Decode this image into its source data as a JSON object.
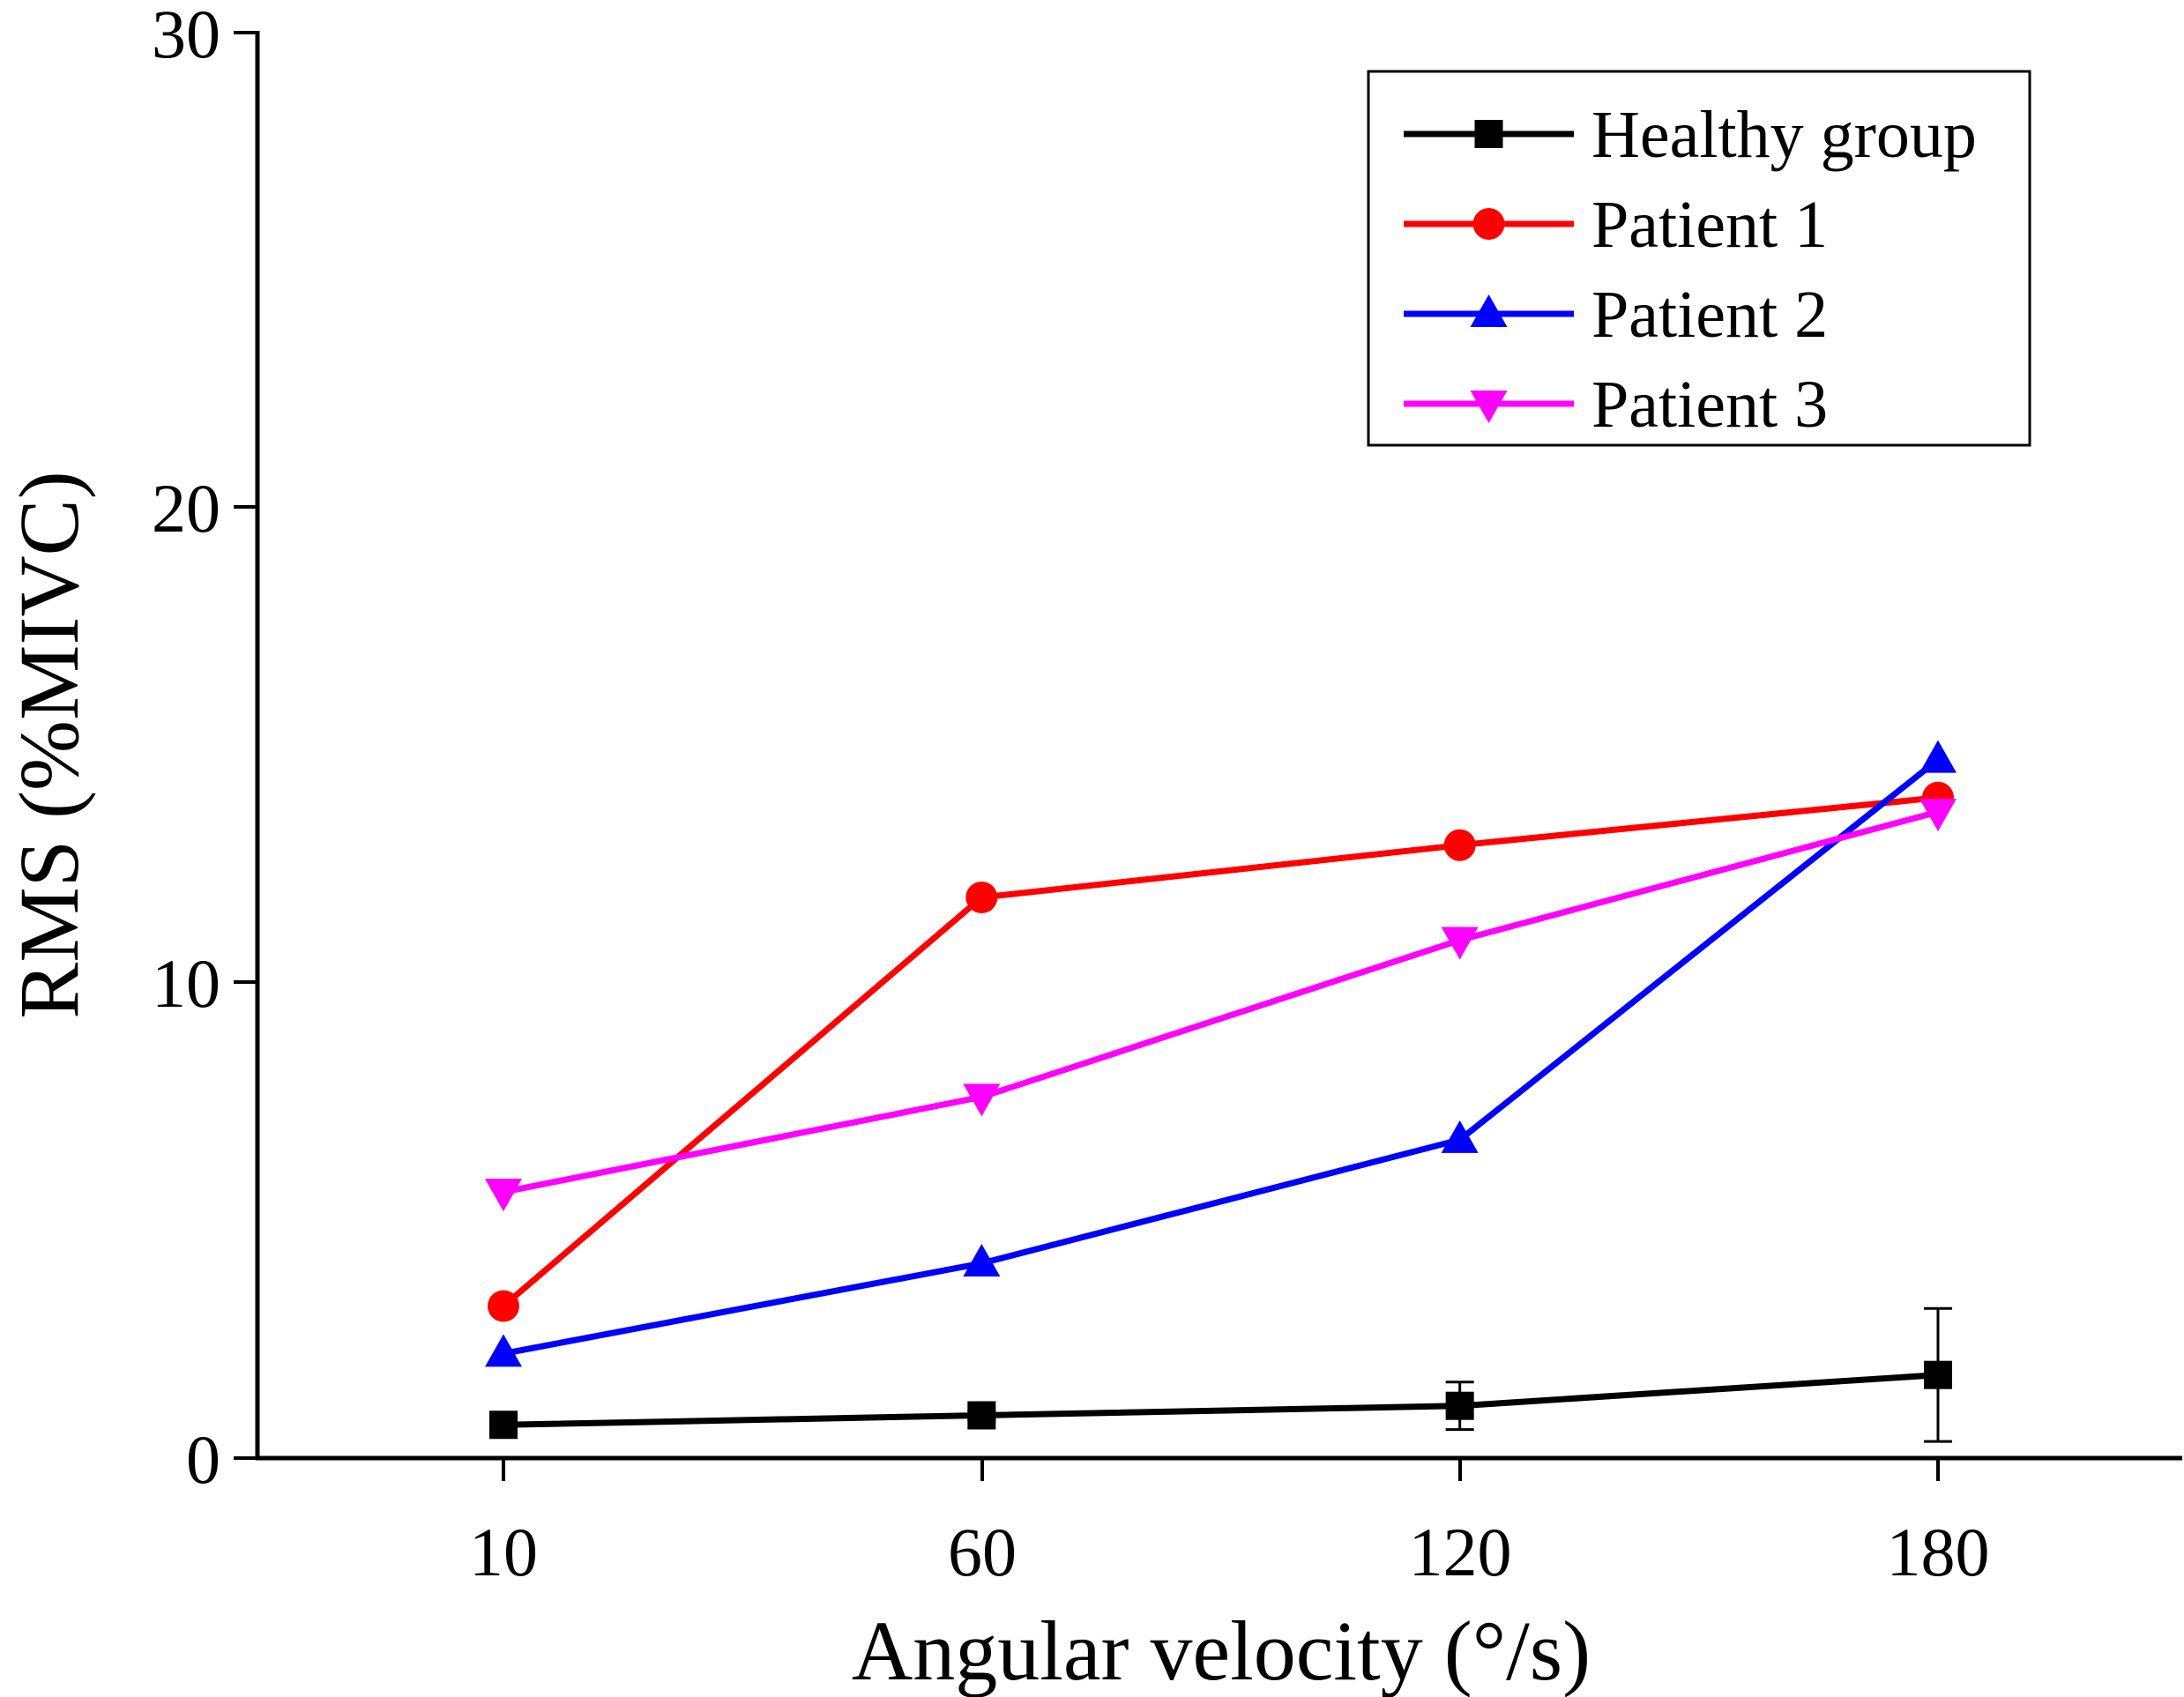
{
  "chart_data": {
    "type": "line",
    "title": "",
    "xlabel": "Angular velocity (°/s)",
    "ylabel": "RMS (%MIVC)",
    "categories": [
      "10",
      "60",
      "120",
      "180"
    ],
    "ylim": [
      0,
      30
    ],
    "yticks": [
      "0",
      "10",
      "20",
      "30"
    ],
    "grid": false,
    "legend_position": "top-right",
    "series": [
      {
        "name": "Healthy group",
        "color": "#000000",
        "marker": "square",
        "values": [
          0.7,
          0.9,
          1.1,
          1.75
        ],
        "error": [
          0.1,
          0.1,
          0.5,
          1.4
        ]
      },
      {
        "name": "Patient 1",
        "color": "#ff0000",
        "marker": "circle",
        "values": [
          3.2,
          11.8,
          12.9,
          13.9
        ]
      },
      {
        "name": "Patient 2",
        "color": "#0000ff",
        "marker": "triangle-up",
        "values": [
          2.2,
          4.1,
          6.7,
          14.7
        ]
      },
      {
        "name": "Patient 3",
        "color": "#ff00ff",
        "marker": "triangle-down",
        "values": [
          5.6,
          7.6,
          10.9,
          13.6
        ]
      }
    ]
  }
}
